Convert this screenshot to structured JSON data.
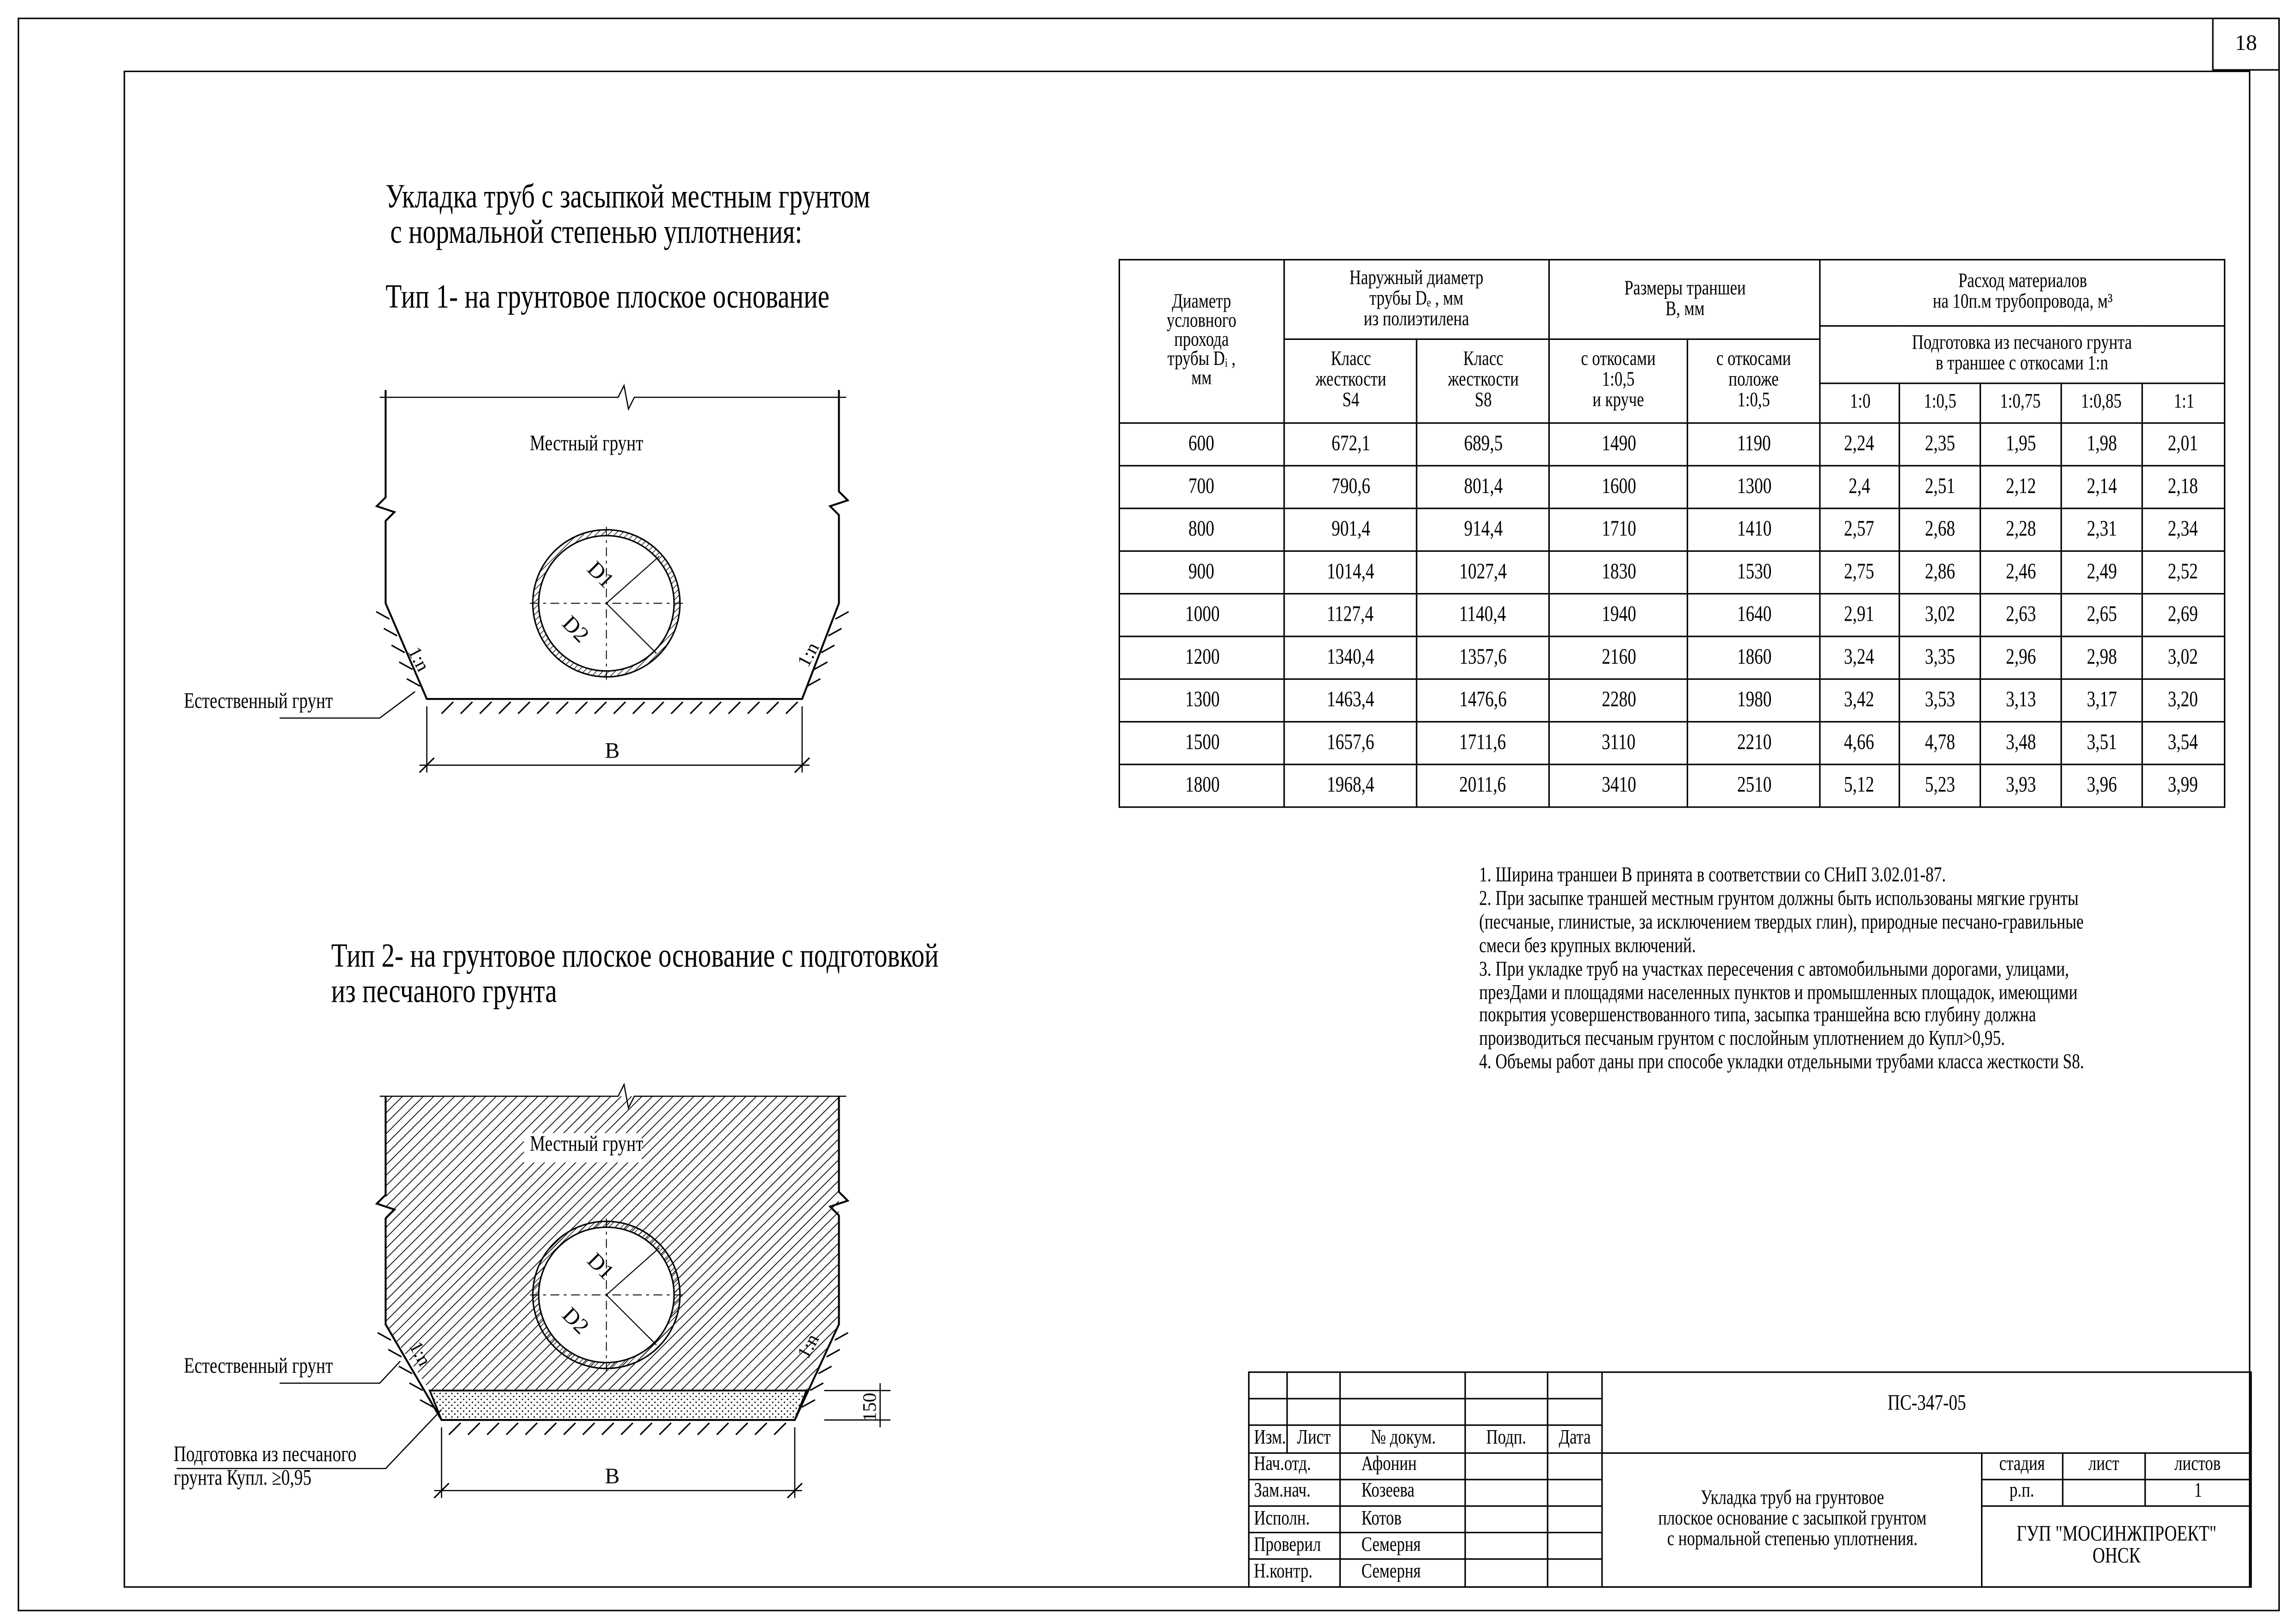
{
  "page_number": "18",
  "heading": {
    "line1": "Укладка труб с засыпкой местным грунтом",
    "line2": "с нормальной степенью уплотнения:"
  },
  "type1": {
    "title": "Тип 1- на грунтовое плоское основание",
    "local_soil": "Местный грунт",
    "natural_soil": "Естественный грунт",
    "slope_left": "1:n",
    "slope_right": "1:n",
    "d1": "D1",
    "d2": "D2",
    "width": "B"
  },
  "type2": {
    "title_line1": "Тип 2- на грунтовое плоское основание с подготовкой",
    "title_line2": "из песчаного грунта",
    "local_soil": "Местный грунт",
    "natural_soil": "Естественный грунт",
    "bedding_line1": "Подготовка из песчаного",
    "bedding_line2": "грунта Купл. ≥0,95",
    "slope_left": "1:n",
    "slope_right": "1:n",
    "d1": "D1",
    "d2": "D2",
    "width": "B",
    "bedding_thickness": "150"
  },
  "table": {
    "headers": {
      "dn": "Диаметр условного прохода трубы Dᵢ, мм",
      "outer": "Наружный диаметр трубы Dₑ, мм из полиэтилена",
      "s4": "Класс жесткости S4",
      "s8": "Класс жесткости S8",
      "trench": "Размеры траншеи B, мм",
      "steep": "с откосами 1:0,5 и круче",
      "gentle": "с откосами положе 1:0,5",
      "materials": "Расход материалов на 10п.м трубопровода, м³",
      "sand": "Подготовка из песчаного грунта в траншее с откосами 1:n",
      "ratios": [
        "1:0",
        "1:0,5",
        "1:0,75",
        "1:0,85",
        "1:1"
      ]
    },
    "rows": [
      [
        "600",
        "672,1",
        "689,5",
        "1490",
        "1190",
        "2,24",
        "2,35",
        "1,95",
        "1,98",
        "2,01"
      ],
      [
        "700",
        "790,6",
        "801,4",
        "1600",
        "1300",
        "2,4",
        "2,51",
        "2,12",
        "2,14",
        "2,18"
      ],
      [
        "800",
        "901,4",
        "914,4",
        "1710",
        "1410",
        "2,57",
        "2,68",
        "2,28",
        "2,31",
        "2,34"
      ],
      [
        "900",
        "1014,4",
        "1027,4",
        "1830",
        "1530",
        "2,75",
        "2,86",
        "2,46",
        "2,49",
        "2,52"
      ],
      [
        "1000",
        "1127,4",
        "1140,4",
        "1940",
        "1640",
        "2,91",
        "3,02",
        "2,63",
        "2,65",
        "2,69"
      ],
      [
        "1200",
        "1340,4",
        "1357,6",
        "2160",
        "1860",
        "3,24",
        "3,35",
        "2,96",
        "2,98",
        "3,02"
      ],
      [
        "1300",
        "1463,4",
        "1476,6",
        "2280",
        "1980",
        "3,42",
        "3,53",
        "3,13",
        "3,17",
        "3,20"
      ],
      [
        "1500",
        "1657,6",
        "1711,6",
        "3110",
        "2210",
        "4,66",
        "4,78",
        "3,48",
        "3,51",
        "3,54"
      ],
      [
        "1800",
        "1968,4",
        "2011,6",
        "3410",
        "2510",
        "5,12",
        "5,23",
        "3,93",
        "3,96",
        "3,99"
      ]
    ]
  },
  "notes": [
    "1. Ширина траншеи В принята в соответствии со СНиП 3.02.01-87.",
    "2. При засыпке траншей местным грунтом должны быть использованы мягкие грунты",
    "(песчаные, глинистые, за исключением твердых глин), природные песчано-гравильные",
    "смеси без крупных включений.",
    "3. При укладке труб на участках пересечения  с автомобильными дорогами, улицами,",
    "презДами и площадями населенных пунктов и промышленных площадок, имеющими",
    "покрытия усовершенствованного типа, засыпка траншейна всю глубину должна",
    "производиться песчаным грунтом с послойным уплотнением до Купл>0,95.",
    "4. Объемы работ даны при способе укладки отдельными трубами класса жесткости S8."
  ],
  "title_block": {
    "doc_code": "ПС-347-05",
    "col_headers": [
      "Изм.",
      "Лист",
      "№ докум.",
      "Подп.",
      "Дата"
    ],
    "people": [
      {
        "role": "Нач.отд.",
        "name": "Афонин"
      },
      {
        "role": "Зам.нач.",
        "name": "Козеева"
      },
      {
        "role": "Исполн.",
        "name": "Котов"
      },
      {
        "role": "Проверил",
        "name": "Семерня"
      },
      {
        "role": "Н.контр.",
        "name": "Семерня"
      }
    ],
    "description": [
      "Укладка труб на грунтовое",
      "плоское основание с засыпкой грунтом",
      "с нормальной степенью уплотнения."
    ],
    "stage_label": "стадия",
    "sheet_label": "лист",
    "sheets_label": "листов",
    "stage": "р.п.",
    "sheet": "",
    "sheets": "1",
    "org_line1": "ГУП \"МОСИНЖПРОЕКТ\"",
    "org_line2": "ОНСК"
  }
}
